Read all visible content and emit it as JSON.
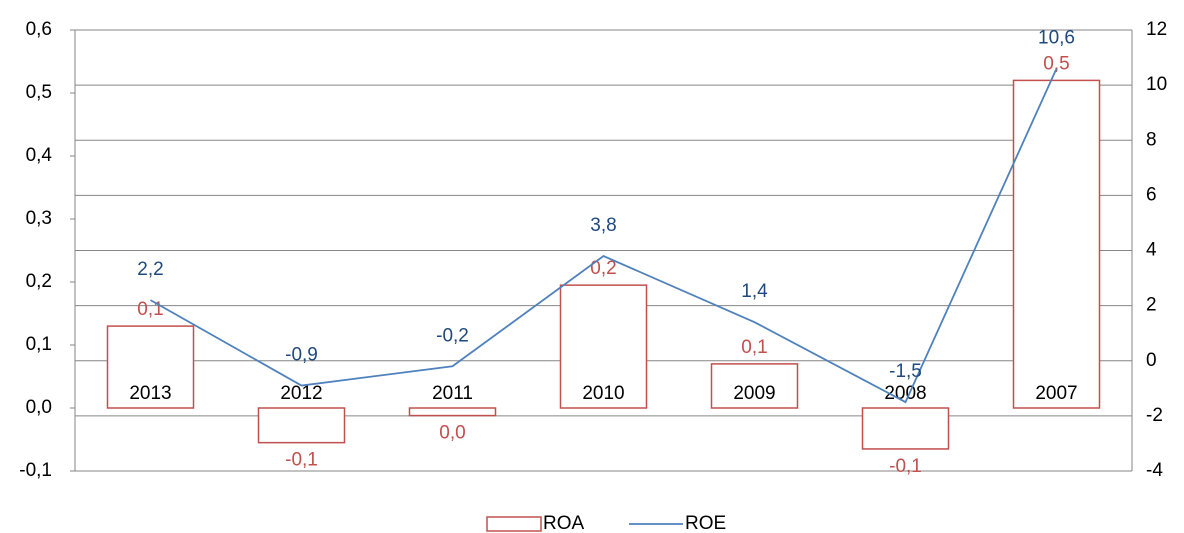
{
  "chart_data": {
    "type": "bar_line",
    "categories": [
      "2013",
      "2012",
      "2011",
      "2010",
      "2009",
      "2008",
      "2007"
    ],
    "series": [
      {
        "name": "ROA",
        "type": "bar",
        "axis": "y",
        "color": "#c0504d",
        "values": [
          0.13,
          -0.055,
          -0.012,
          0.195,
          0.07,
          -0.065,
          0.52
        ],
        "value_labels": [
          "0,1",
          "-0,1",
          "0,0",
          "0,2",
          "0,1",
          "-0,1",
          "0,5"
        ]
      },
      {
        "name": "ROE",
        "type": "line",
        "axis": "y2",
        "color": "#4f81bd",
        "values": [
          2.2,
          -0.9,
          -0.2,
          3.8,
          1.4,
          -1.5,
          10.6
        ],
        "value_labels": [
          "2,2",
          "-0,9",
          "-0,2",
          "3,8",
          "1,4",
          "-1,5",
          "10,6"
        ]
      }
    ],
    "ylim": [
      -0.1,
      0.6
    ],
    "yticks": [
      {
        "value": -0.1,
        "label": "-0,1"
      },
      {
        "value": 0.0,
        "label": "0,0"
      },
      {
        "value": 0.1,
        "label": "0,1"
      },
      {
        "value": 0.2,
        "label": "0,2"
      },
      {
        "value": 0.3,
        "label": "0,3"
      },
      {
        "value": 0.4,
        "label": "0,4"
      },
      {
        "value": 0.5,
        "label": "0,5"
      },
      {
        "value": 0.6,
        "label": "0,6"
      }
    ],
    "y2lim": [
      -4,
      12
    ],
    "y2ticks": [
      -4,
      -2,
      0,
      2,
      4,
      6,
      8,
      10,
      12
    ],
    "grid": true,
    "legend": "bottom"
  }
}
